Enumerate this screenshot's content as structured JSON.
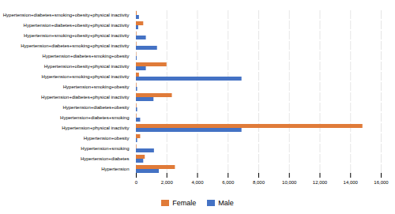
{
  "chart_data": {
    "type": "bar",
    "orientation": "horizontal",
    "categories": [
      "Hypertension+diabetes+smoking+obesity+physical inactivity",
      "Hypertension+diabetes+obesity+physical inactivity",
      "Hypertension+smoking+obesity+physical inactivity",
      "Hypertension+diabetes+smoking+physical inactivity",
      "Hypertension+diabetes+smoking+obesity",
      "Hypertension+obesity+physical inactivity",
      "Hypertension+smoking+physical inactivity",
      "Hypertension+smoking+obesity",
      "Hypertension+diabetes+physical inactivity",
      "Hypertension+diabetes+obesity",
      "Hypertension+diabetes+smoking",
      "Hypertension+physical inactivity",
      "Hypertension+obesity",
      "Hypertension+smoking",
      "Hypertension+diabetes",
      "Hypertension"
    ],
    "series": [
      {
        "name": "Female",
        "color": "#E07B39",
        "values": [
          50,
          480,
          30,
          30,
          20,
          2000,
          200,
          30,
          2350,
          30,
          30,
          14800,
          280,
          30,
          580,
          2550
        ]
      },
      {
        "name": "Male",
        "color": "#4472C4",
        "values": [
          200,
          150,
          650,
          1380,
          50,
          650,
          6900,
          80,
          1150,
          80,
          280,
          6900,
          80,
          1180,
          480,
          1500
        ]
      }
    ],
    "xlim": [
      0,
      16000
    ],
    "xticks": [
      0,
      {
        "value": 2000,
        "label": "2,000"
      },
      {
        "value": 4000,
        "label": "4,000"
      },
      {
        "value": 6000,
        "label": "6,000"
      },
      {
        "value": 8000,
        "label": "8,000"
      },
      {
        "value": 10000,
        "label": "10,000"
      },
      {
        "value": 12000,
        "label": "12,000"
      },
      {
        "value": 14000,
        "label": "14,000"
      },
      {
        "value": 16000,
        "label": "16,000"
      }
    ],
    "grid": true,
    "legend": "bottom"
  }
}
